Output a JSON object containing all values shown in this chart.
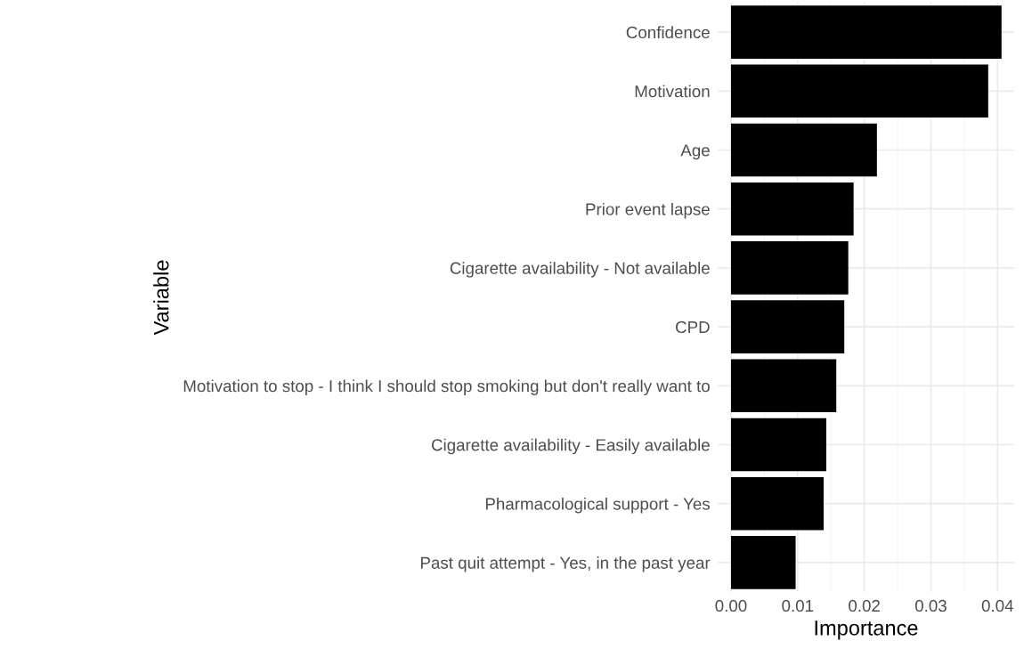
{
  "chart_data": {
    "type": "bar",
    "orientation": "horizontal",
    "xlabel": "Importance",
    "ylabel": "Variable",
    "categories": [
      "Confidence",
      "Motivation",
      "Age",
      "Prior event lapse",
      "Cigarette availability - Not available",
      "CPD",
      "Motivation to stop - I think I should stop smoking but don't really want to",
      "Cigarette availability - Easily available",
      "Pharmacological support - Yes",
      "Past quit attempt - Yes, in the past year"
    ],
    "values": [
      0.0406,
      0.0386,
      0.0219,
      0.0184,
      0.0176,
      0.017,
      0.0158,
      0.0143,
      0.0139,
      0.0097
    ],
    "color": "#000000",
    "xlim": [
      -0.002,
      0.0425
    ],
    "xticks": [
      {
        "value": 0,
        "label": "0.00"
      },
      {
        "value": 0.01,
        "label": "0.01"
      },
      {
        "value": 0.02,
        "label": "0.02"
      },
      {
        "value": 0.03,
        "label": "0.03"
      },
      {
        "value": 0.04,
        "label": "0.04"
      }
    ],
    "grid": true
  }
}
